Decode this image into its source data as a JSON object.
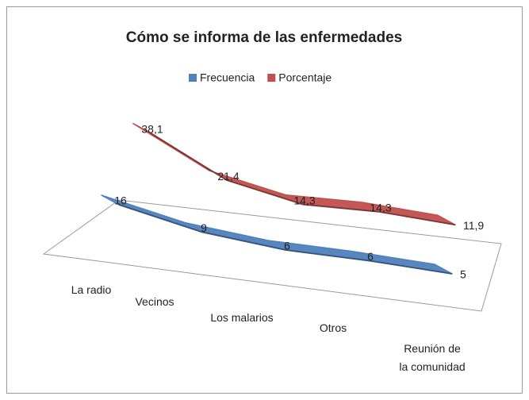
{
  "chart_data": {
    "type": "line",
    "title": "Cómo se informa de las enfermedades",
    "categories": [
      "La radio",
      "Vecinos",
      "Los malarios",
      "Otros",
      "Reunión de\nla comunidad"
    ],
    "series": [
      {
        "name": "Frecuencia",
        "color": "#4f81bd",
        "values": [
          16,
          9,
          6,
          6,
          5
        ]
      },
      {
        "name": "Porcentaje",
        "color": "#c0504d",
        "values": [
          38.1,
          21.4,
          14.3,
          14.3,
          11.9
        ],
        "value_labels": [
          "38,1",
          "21,4",
          "14,3",
          "14,3",
          "11,9"
        ]
      }
    ],
    "legend": "top"
  }
}
